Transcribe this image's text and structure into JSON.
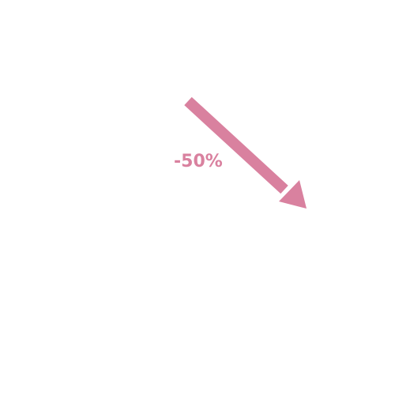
{
  "change": {
    "label": "-50%",
    "direction": "down-right",
    "icon": "trend-down-arrow-icon"
  },
  "colors": {
    "accent": "#d9819f",
    "background": "#ffffff"
  }
}
